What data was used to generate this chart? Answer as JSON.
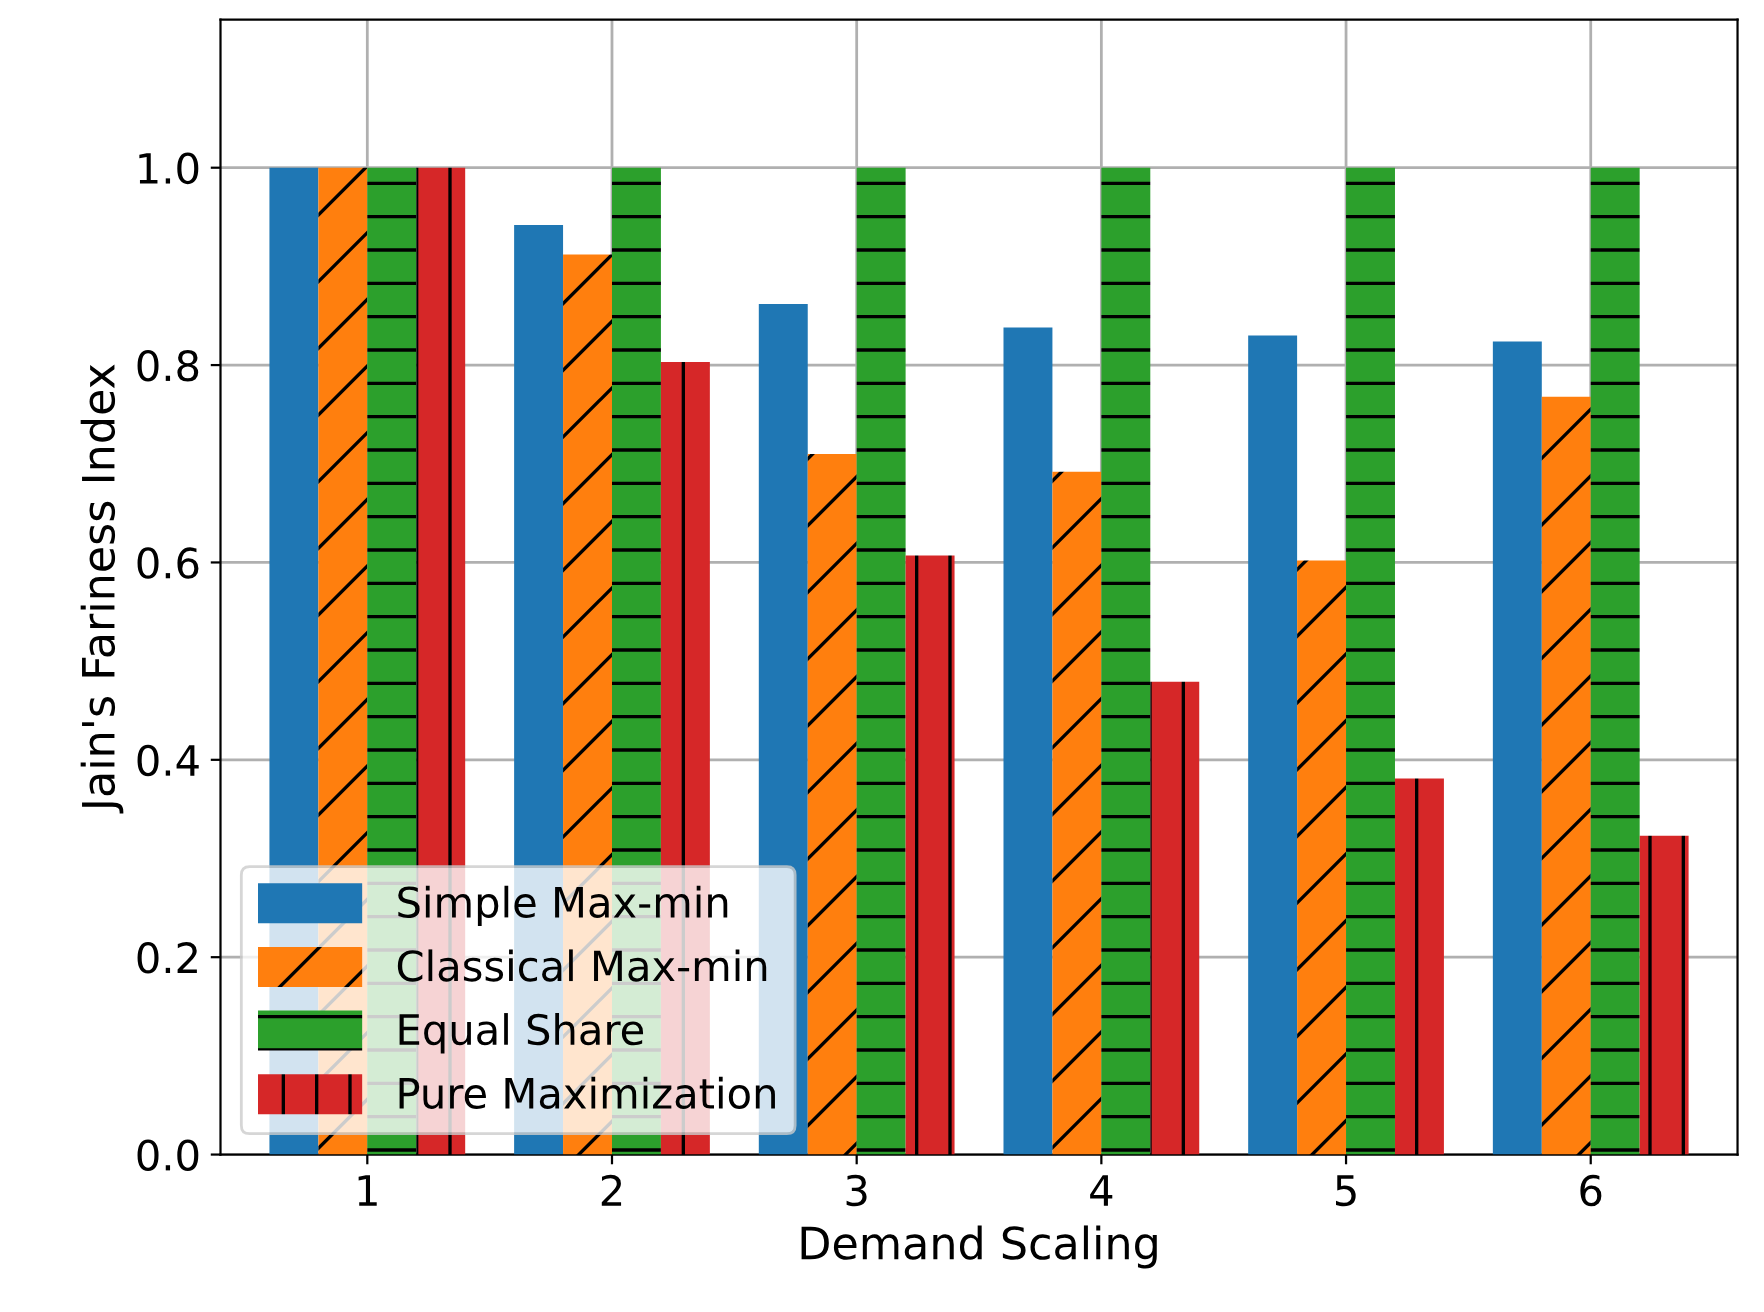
{
  "chart_data": {
    "type": "bar",
    "xlabel": "Demand Scaling",
    "ylabel": "Jain's Fariness Index",
    "categories": [
      "1",
      "2",
      "3",
      "4",
      "5",
      "6"
    ],
    "series": [
      {
        "name": "Simple Max-min",
        "color": "#1f77b4",
        "values": [
          1.0,
          0.942,
          0.862,
          0.838,
          0.83,
          0.824
        ]
      },
      {
        "name": "Classical Max-min",
        "color": "#ff7f0e",
        "values": [
          1.0,
          0.912,
          0.71,
          0.692,
          0.602,
          0.768
        ]
      },
      {
        "name": "Equal Share",
        "color": "#2ca02c",
        "values": [
          1.0,
          1.0,
          1.0,
          1.0,
          1.0,
          1.0
        ]
      },
      {
        "name": "Pure Maximization",
        "color": "#d62728",
        "values": [
          1.0,
          0.803,
          0.607,
          0.479,
          0.381,
          0.323
        ]
      }
    ],
    "ylim": [
      0,
      1.15
    ],
    "yticks": [
      {
        "value": 0,
        "label": "0.0"
      },
      {
        "value": 0.2,
        "label": "0.2"
      },
      {
        "value": 0.4,
        "label": "0.4"
      },
      {
        "value": 0.6,
        "label": "0.6"
      },
      {
        "value": 0.8,
        "label": "0.8"
      },
      {
        "value": 1.0,
        "label": "1.0"
      }
    ],
    "grid": true,
    "legend": "bottom left"
  }
}
